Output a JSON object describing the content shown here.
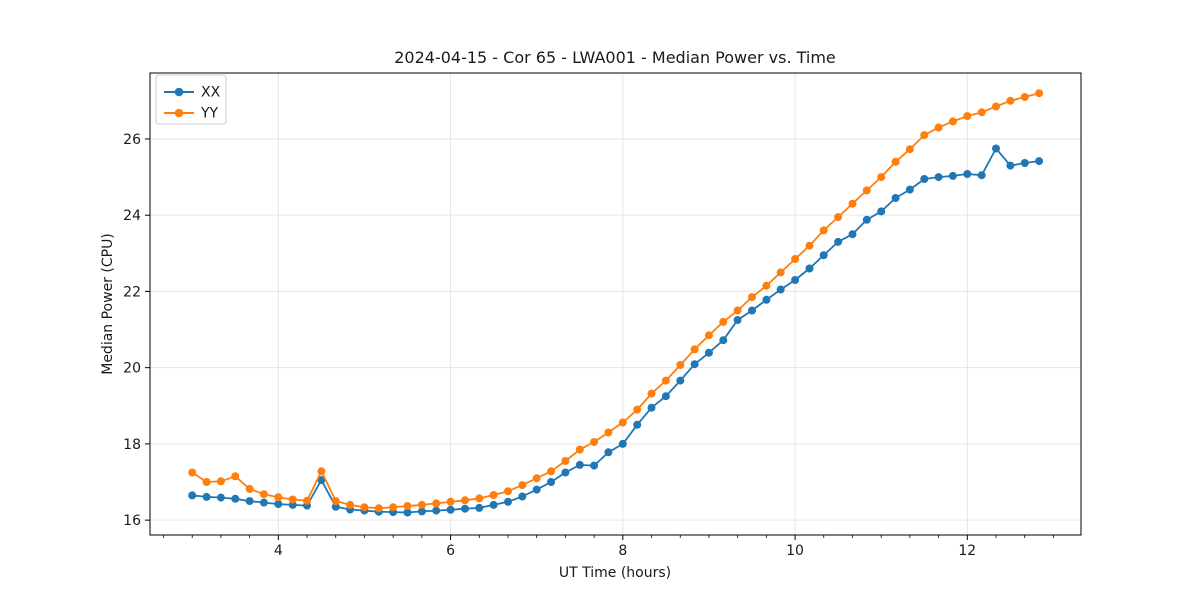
{
  "chart_data": {
    "type": "line",
    "title": "2024-04-15 - Cor 65 - LWA001 - Median Power vs. Time",
    "xlabel": "UT Time (hours)",
    "ylabel": "Median Power (CPU)",
    "xlim": [
      2.51,
      13.32
    ],
    "ylim": [
      15.61,
      27.73
    ],
    "xticks": [
      4,
      6,
      8,
      10,
      12
    ],
    "yticks": [
      16,
      18,
      20,
      22,
      24,
      26
    ],
    "x_minor_step": 0.33333,
    "grid": true,
    "legend_position": "upper-left",
    "x": [
      3.0,
      3.167,
      3.333,
      3.5,
      3.667,
      3.833,
      4.0,
      4.167,
      4.333,
      4.5,
      4.667,
      4.833,
      5.0,
      5.167,
      5.333,
      5.5,
      5.667,
      5.833,
      6.0,
      6.167,
      6.333,
      6.5,
      6.667,
      6.833,
      7.0,
      7.167,
      7.333,
      7.5,
      7.667,
      7.833,
      8.0,
      8.167,
      8.333,
      8.5,
      8.667,
      8.833,
      9.0,
      9.167,
      9.333,
      9.5,
      9.667,
      9.833,
      10.0,
      10.167,
      10.333,
      10.5,
      10.667,
      10.833,
      11.0,
      11.167,
      11.333,
      11.5,
      11.667,
      11.833,
      12.0,
      12.167,
      12.333,
      12.5,
      12.667,
      12.833
    ],
    "series": [
      {
        "name": "XX",
        "color": "#1f77b4",
        "values": [
          16.65,
          16.61,
          16.59,
          16.56,
          16.5,
          16.46,
          16.42,
          16.4,
          16.38,
          17.05,
          16.35,
          16.28,
          16.25,
          16.22,
          16.21,
          16.2,
          16.23,
          16.25,
          16.27,
          16.3,
          16.32,
          16.4,
          16.48,
          16.62,
          16.8,
          17.0,
          17.25,
          17.45,
          17.43,
          17.78,
          18.0,
          18.5,
          18.95,
          19.25,
          19.66,
          20.09,
          20.39,
          20.72,
          21.25,
          21.5,
          21.78,
          22.05,
          22.3,
          22.6,
          22.95,
          23.3,
          23.5,
          23.88,
          24.1,
          24.45,
          24.67,
          24.95,
          25.0,
          25.03,
          25.08,
          25.05,
          25.75,
          25.3,
          25.37,
          25.42
        ]
      },
      {
        "name": "YY",
        "color": "#ff7f0e",
        "values": [
          17.25,
          17.0,
          17.02,
          17.15,
          16.82,
          16.68,
          16.6,
          16.54,
          16.51,
          17.28,
          16.5,
          16.4,
          16.34,
          16.31,
          16.34,
          16.37,
          16.4,
          16.44,
          16.48,
          16.52,
          16.57,
          16.66,
          16.76,
          16.92,
          17.1,
          17.28,
          17.55,
          17.85,
          18.05,
          18.3,
          18.56,
          18.9,
          19.32,
          19.66,
          20.07,
          20.48,
          20.85,
          21.2,
          21.5,
          21.85,
          22.15,
          22.5,
          22.85,
          23.2,
          23.6,
          23.95,
          24.3,
          24.65,
          25.0,
          25.4,
          25.73,
          26.1,
          26.3,
          26.46,
          26.6,
          26.7,
          26.85,
          27.0,
          27.1,
          27.2
        ]
      }
    ],
    "colors": {
      "grid": "#e6e6e6",
      "spine": "#000000",
      "text": "#1a1a1a",
      "legend_border": "#cccccc"
    }
  }
}
